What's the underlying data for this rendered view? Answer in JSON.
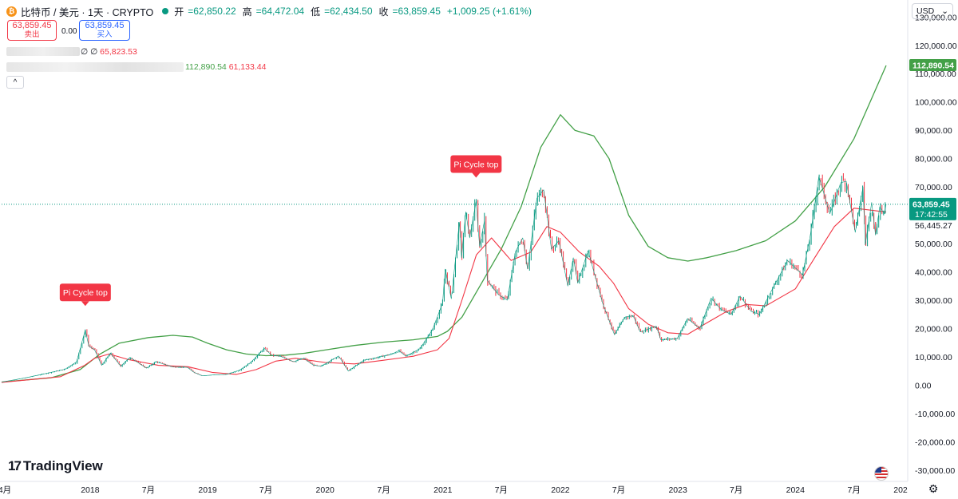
{
  "header": {
    "symbol": "比特币 / 美元 · 1天 · CRYPTO",
    "coin_glyph": "₿",
    "open_label": "开",
    "open": "=62,850.22",
    "high_label": "高",
    "high": "=64,472.04",
    "low_label": "低",
    "low": "=62,434.50",
    "close_label": "收",
    "close": "=63,859.45",
    "change": "+1,009.25 (+1.61%)"
  },
  "trade": {
    "sell_price": "63,859.45",
    "sell_label": "卖出",
    "spread": "0.00",
    "buy_price": "63,859.45",
    "buy_label": "买入"
  },
  "indicator1": {
    "prefix": "∅ ∅",
    "value": "65,823.53"
  },
  "indicator2": {
    "value_green": "112,890.54",
    "value_red": "61,133.44"
  },
  "collapse_glyph": "^",
  "currency": {
    "label": "USD",
    "arrow": "⌄"
  },
  "branding": {
    "name": "TradingView",
    "mark": "17"
  },
  "settings_glyph": "⚙",
  "colors": {
    "up": "#089981",
    "down": "#f23645",
    "long_ma": "#43a047",
    "short_ma": "#f23645",
    "current": "#089981",
    "annotation": "#f23645"
  },
  "chart_data": {
    "type": "line",
    "title": "比特币 / 美元 · 1天 · CRYPTO",
    "y_axis": {
      "range": [
        -34000,
        136000
      ],
      "ticks": [
        130000,
        120000,
        110000,
        100000,
        90000,
        80000,
        70000,
        60000,
        50000,
        40000,
        30000,
        20000,
        10000,
        0,
        -10000,
        -20000,
        -30000
      ],
      "tick_labels": [
        "130,000.00",
        "120,000.00",
        "110,000.00",
        "100,000.00",
        "90,000.00",
        "80,000.00",
        "70,000.00",
        "60,000.00",
        "50,000.00",
        "40,000.00",
        "30,000.00",
        "20,000.00",
        "10,000.00",
        "0.00",
        "-10,000.00",
        "-20,000.00",
        "-30,000.00"
      ]
    },
    "x_axis": {
      "range": [
        "2017-04-01",
        "2024-12-05"
      ],
      "ticks": [
        {
          "date": "2017-04-01",
          "label": "4月"
        },
        {
          "date": "2018-01-01",
          "label": "2018"
        },
        {
          "date": "2018-07-01",
          "label": "7月"
        },
        {
          "date": "2019-01-01",
          "label": "2019"
        },
        {
          "date": "2019-07-01",
          "label": "7月"
        },
        {
          "date": "2020-01-01",
          "label": "2020"
        },
        {
          "date": "2020-07-01",
          "label": "7月"
        },
        {
          "date": "2021-01-01",
          "label": "2021"
        },
        {
          "date": "2021-07-01",
          "label": "7月"
        },
        {
          "date": "2022-01-01",
          "label": "2022"
        },
        {
          "date": "2022-07-01",
          "label": "7月"
        },
        {
          "date": "2023-01-01",
          "label": "2023"
        },
        {
          "date": "2023-07-01",
          "label": "7月"
        },
        {
          "date": "2024-01-01",
          "label": "2024"
        },
        {
          "date": "2024-07-01",
          "label": "7月"
        },
        {
          "date": "2025-01-01",
          "label": "202"
        }
      ]
    },
    "price_series": {
      "name": "比特币 / 美元",
      "points": [
        [
          "2017-04-01",
          1100
        ],
        [
          "2017-06-15",
          2600
        ],
        [
          "2017-08-15",
          4100
        ],
        [
          "2017-10-15",
          5600
        ],
        [
          "2017-11-20",
          8200
        ],
        [
          "2017-12-17",
          19500
        ],
        [
          "2017-12-28",
          13800
        ],
        [
          "2018-01-15",
          12500
        ],
        [
          "2018-02-06",
          7000
        ],
        [
          "2018-03-05",
          11300
        ],
        [
          "2018-04-06",
          6700
        ],
        [
          "2018-05-05",
          9800
        ],
        [
          "2018-06-25",
          6000
        ],
        [
          "2018-07-25",
          8300
        ],
        [
          "2018-09-15",
          6400
        ],
        [
          "2018-10-30",
          6300
        ],
        [
          "2018-11-20",
          4500
        ],
        [
          "2018-12-15",
          3300
        ],
        [
          "2019-01-20",
          3600
        ],
        [
          "2019-03-01",
          3800
        ],
        [
          "2019-04-10",
          5300
        ],
        [
          "2019-05-15",
          8000
        ],
        [
          "2019-06-26",
          13000
        ],
        [
          "2019-07-20",
          10500
        ],
        [
          "2019-08-15",
          10200
        ],
        [
          "2019-09-25",
          8300
        ],
        [
          "2019-10-27",
          9500
        ],
        [
          "2019-11-25",
          7100
        ],
        [
          "2019-12-18",
          6600
        ],
        [
          "2020-02-12",
          10300
        ],
        [
          "2020-03-13",
          5000
        ],
        [
          "2020-04-30",
          8800
        ],
        [
          "2020-06-01",
          9500
        ],
        [
          "2020-07-27",
          11000
        ],
        [
          "2020-08-17",
          12200
        ],
        [
          "2020-09-08",
          10200
        ],
        [
          "2020-10-22",
          12900
        ],
        [
          "2020-11-30",
          19700
        ],
        [
          "2020-12-31",
          29000
        ],
        [
          "2021-01-08",
          41000
        ],
        [
          "2021-01-27",
          30500
        ],
        [
          "2021-02-21",
          57500
        ],
        [
          "2021-02-28",
          45000
        ],
        [
          "2021-03-13",
          61200
        ],
        [
          "2021-03-25",
          52000
        ],
        [
          "2021-04-14",
          64800
        ],
        [
          "2021-04-25",
          49000
        ],
        [
          "2021-05-10",
          58000
        ],
        [
          "2021-05-19",
          37000
        ],
        [
          "2021-06-22",
          32000
        ],
        [
          "2021-07-20",
          30000
        ],
        [
          "2021-08-14",
          47000
        ],
        [
          "2021-09-06",
          52000
        ],
        [
          "2021-09-21",
          41000
        ],
        [
          "2021-10-20",
          66000
        ],
        [
          "2021-11-10",
          69000
        ],
        [
          "2021-12-04",
          48000
        ],
        [
          "2021-12-27",
          51000
        ],
        [
          "2022-01-24",
          35000
        ],
        [
          "2022-02-10",
          45000
        ],
        [
          "2022-02-24",
          36000
        ],
        [
          "2022-03-28",
          47500
        ],
        [
          "2022-05-12",
          29000
        ],
        [
          "2022-06-18",
          17800
        ],
        [
          "2022-07-20",
          24000
        ],
        [
          "2022-08-15",
          24500
        ],
        [
          "2022-09-06",
          18800
        ],
        [
          "2022-10-26",
          20800
        ],
        [
          "2022-11-09",
          16000
        ],
        [
          "2022-12-30",
          16500
        ],
        [
          "2023-01-31",
          23500
        ],
        [
          "2023-03-10",
          20000
        ],
        [
          "2023-04-14",
          30800
        ],
        [
          "2023-05-15",
          26700
        ],
        [
          "2023-06-15",
          25000
        ],
        [
          "2023-07-13",
          31500
        ],
        [
          "2023-08-17",
          26000
        ],
        [
          "2023-09-11",
          25000
        ],
        [
          "2023-10-24",
          34500
        ],
        [
          "2023-12-08",
          44000
        ],
        [
          "2024-01-23",
          39000
        ],
        [
          "2024-02-15",
          52000
        ],
        [
          "2024-03-14",
          73700
        ],
        [
          "2024-04-17",
          60500
        ],
        [
          "2024-05-21",
          71500
        ],
        [
          "2024-06-07",
          72000
        ],
        [
          "2024-07-05",
          54000
        ],
        [
          "2024-07-29",
          70000
        ],
        [
          "2024-08-05",
          49500
        ],
        [
          "2024-08-25",
          64500
        ],
        [
          "2024-09-06",
          53000
        ],
        [
          "2024-09-19",
          63000
        ],
        [
          "2024-10-03",
          60500
        ],
        [
          "2024-10-09",
          63859
        ]
      ]
    },
    "long_ma": {
      "color": "#43a047",
      "points": [
        [
          "2017-04-01",
          1100
        ],
        [
          "2017-09-01",
          2600
        ],
        [
          "2017-12-01",
          5500
        ],
        [
          "2018-02-01",
          11000
        ],
        [
          "2018-04-01",
          14800
        ],
        [
          "2018-07-01",
          16800
        ],
        [
          "2018-09-15",
          17600
        ],
        [
          "2018-11-15",
          17000
        ],
        [
          "2019-01-01",
          14800
        ],
        [
          "2019-03-01",
          12500
        ],
        [
          "2019-05-01",
          11000
        ],
        [
          "2019-07-01",
          10400
        ],
        [
          "2019-09-01",
          10600
        ],
        [
          "2019-11-01",
          11300
        ],
        [
          "2020-01-01",
          12400
        ],
        [
          "2020-04-01",
          14000
        ],
        [
          "2020-07-01",
          15200
        ],
        [
          "2020-10-01",
          16000
        ],
        [
          "2020-12-15",
          17200
        ],
        [
          "2021-01-15",
          19000
        ],
        [
          "2021-03-01",
          24000
        ],
        [
          "2021-05-01",
          36000
        ],
        [
          "2021-07-01",
          48000
        ],
        [
          "2021-09-01",
          63000
        ],
        [
          "2021-11-01",
          84000
        ],
        [
          "2022-01-01",
          95500
        ],
        [
          "2022-02-15",
          90000
        ],
        [
          "2022-04-15",
          88000
        ],
        [
          "2022-06-01",
          80000
        ],
        [
          "2022-08-01",
          60000
        ],
        [
          "2022-10-01",
          49000
        ],
        [
          "2022-12-01",
          45000
        ],
        [
          "2023-02-01",
          43800
        ],
        [
          "2023-04-01",
          45000
        ],
        [
          "2023-07-01",
          47500
        ],
        [
          "2023-10-01",
          51000
        ],
        [
          "2024-01-01",
          58000
        ],
        [
          "2024-04-01",
          70000
        ],
        [
          "2024-07-01",
          87000
        ],
        [
          "2024-10-09",
          112891
        ]
      ]
    },
    "short_ma": {
      "color": "#f23645",
      "points": [
        [
          "2017-04-01",
          1000
        ],
        [
          "2017-10-01",
          3000
        ],
        [
          "2017-12-15",
          7000
        ],
        [
          "2018-01-15",
          9500
        ],
        [
          "2018-03-01",
          11000
        ],
        [
          "2018-05-01",
          9000
        ],
        [
          "2018-08-01",
          7000
        ],
        [
          "2018-11-01",
          6500
        ],
        [
          "2019-01-15",
          4500
        ],
        [
          "2019-04-01",
          3800
        ],
        [
          "2019-06-01",
          5500
        ],
        [
          "2019-08-01",
          8500
        ],
        [
          "2019-10-01",
          9500
        ],
        [
          "2020-01-01",
          8000
        ],
        [
          "2020-04-01",
          7500
        ],
        [
          "2020-07-01",
          8800
        ],
        [
          "2020-10-01",
          10200
        ],
        [
          "2020-12-15",
          12500
        ],
        [
          "2021-01-20",
          16500
        ],
        [
          "2021-03-01",
          30000
        ],
        [
          "2021-04-15",
          46000
        ],
        [
          "2021-06-01",
          52000
        ],
        [
          "2021-08-01",
          44000
        ],
        [
          "2021-10-01",
          47000
        ],
        [
          "2021-11-20",
          56000
        ],
        [
          "2022-01-01",
          54000
        ],
        [
          "2022-03-01",
          47000
        ],
        [
          "2022-05-01",
          42000
        ],
        [
          "2022-06-15",
          36000
        ],
        [
          "2022-08-01",
          27000
        ],
        [
          "2022-10-01",
          21500
        ],
        [
          "2022-12-01",
          18500
        ],
        [
          "2023-02-01",
          18000
        ],
        [
          "2023-04-01",
          22000
        ],
        [
          "2023-06-01",
          26000
        ],
        [
          "2023-08-01",
          28500
        ],
        [
          "2023-10-01",
          28000
        ],
        [
          "2024-01-01",
          34000
        ],
        [
          "2024-03-01",
          45000
        ],
        [
          "2024-05-01",
          56000
        ],
        [
          "2024-07-01",
          62500
        ],
        [
          "2024-10-09",
          61133
        ]
      ]
    },
    "annotations": [
      {
        "date": "2017-12-17",
        "value": 19500,
        "text": "Pi Cycle top"
      },
      {
        "date": "2021-04-14",
        "value": 64800,
        "text": "Pi Cycle top"
      }
    ],
    "current_price": {
      "value": 63859.45,
      "label": "63,859.45",
      "countdown": "17:42:55"
    },
    "axis_badges": [
      {
        "value": 112890.54,
        "label": "112,890.54",
        "color": "#43a047"
      },
      {
        "value": 61133.44,
        "label": "61,133.44",
        "color": "#f23645"
      }
    ],
    "plain_axis_labels": [
      {
        "value": 56445.27,
        "label": "56,445.27"
      }
    ],
    "legend": "none",
    "grid": false
  }
}
